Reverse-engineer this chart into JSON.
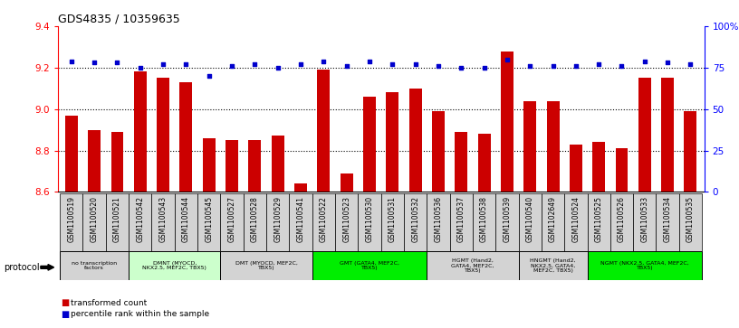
{
  "title": "GDS4835 / 10359635",
  "samples": [
    "GSM1100519",
    "GSM1100520",
    "GSM1100521",
    "GSM1100542",
    "GSM1100543",
    "GSM1100544",
    "GSM1100545",
    "GSM1100527",
    "GSM1100528",
    "GSM1100529",
    "GSM1100541",
    "GSM1100522",
    "GSM1100523",
    "GSM1100530",
    "GSM1100531",
    "GSM1100532",
    "GSM1100536",
    "GSM1100537",
    "GSM1100538",
    "GSM1100539",
    "GSM1100540",
    "GSM1102649",
    "GSM1100524",
    "GSM1100525",
    "GSM1100526",
    "GSM1100533",
    "GSM1100534",
    "GSM1100535"
  ],
  "red_values": [
    8.97,
    8.9,
    8.89,
    9.18,
    9.15,
    9.13,
    8.86,
    8.85,
    8.85,
    8.87,
    8.64,
    9.19,
    8.69,
    9.06,
    9.08,
    9.1,
    8.99,
    8.89,
    8.88,
    9.28,
    9.04,
    9.04,
    8.83,
    8.84,
    8.81,
    9.15,
    9.15,
    8.99
  ],
  "blue_values": [
    79,
    78,
    78,
    75,
    77,
    77,
    70,
    76,
    77,
    75,
    77,
    79,
    76,
    79,
    77,
    77,
    76,
    75,
    75,
    80,
    76,
    76,
    76,
    77,
    76,
    79,
    78,
    77
  ],
  "groups": [
    {
      "label": "no transcription\nfactors",
      "start": 0,
      "end": 3,
      "color": "#d3d3d3"
    },
    {
      "label": "DMNT (MYOCD,\nNKX2.5, MEF2C, TBX5)",
      "start": 3,
      "end": 7,
      "color": "#ccffcc"
    },
    {
      "label": "DMT (MYOCD, MEF2C,\nTBX5)",
      "start": 7,
      "end": 11,
      "color": "#d3d3d3"
    },
    {
      "label": "GMT (GATA4, MEF2C,\nTBX5)",
      "start": 11,
      "end": 16,
      "color": "#00ee00"
    },
    {
      "label": "HGMT (Hand2,\nGATA4, MEF2C,\nTBX5)",
      "start": 16,
      "end": 20,
      "color": "#d3d3d3"
    },
    {
      "label": "HNGMT (Hand2,\nNKX2.5, GATA4,\nMEF2C, TBX5)",
      "start": 20,
      "end": 23,
      "color": "#d3d3d3"
    },
    {
      "label": "NGMT (NKX2.5, GATA4, MEF2C,\nTBX5)",
      "start": 23,
      "end": 28,
      "color": "#00ee00"
    }
  ],
  "ylim_left": [
    8.6,
    9.4
  ],
  "ylim_right": [
    0,
    100
  ],
  "yticks_left": [
    8.6,
    8.8,
    9.0,
    9.2,
    9.4
  ],
  "yticks_right": [
    0,
    25,
    50,
    75,
    100
  ],
  "ytick_labels_right": [
    "0",
    "25",
    "50",
    "75",
    "100%"
  ],
  "bar_color": "#cc0000",
  "dot_color": "#0000cc",
  "bg_color": "#ffffff",
  "protocol_label": "protocol",
  "legend_red": "transformed count",
  "legend_blue": "percentile rank within the sample",
  "sample_label_color": "#d3d3d3"
}
